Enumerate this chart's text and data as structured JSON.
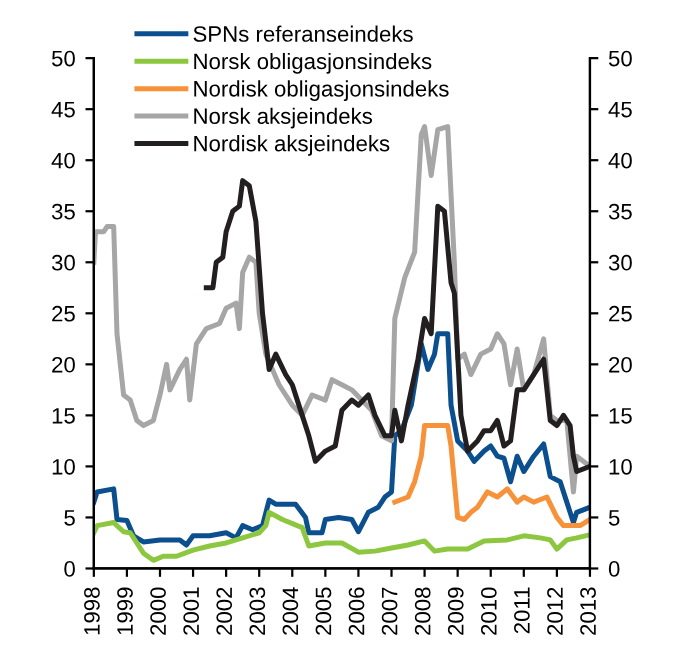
{
  "chart_data": {
    "type": "line",
    "xlim": [
      1998,
      2013
    ],
    "xticks": [
      1998,
      1999,
      2000,
      2001,
      2002,
      2003,
      2004,
      2005,
      2006,
      2007,
      2008,
      2009,
      2010,
      2011,
      2012,
      2013
    ],
    "ylim": [
      0,
      50
    ],
    "yticks": [
      0,
      5,
      10,
      15,
      20,
      25,
      30,
      35,
      40,
      45,
      50
    ],
    "y2lim": [
      0,
      50
    ],
    "y2ticks": [
      0,
      5,
      10,
      15,
      20,
      25,
      30,
      35,
      40,
      45,
      50
    ],
    "grid": false,
    "legend": "top left",
    "marker": "none",
    "line_style": "solid",
    "series": [
      {
        "name": "SPNs referanseindeks",
        "color": "#0c4f8f",
        "x": [
          1998.0,
          1998.1,
          1998.6,
          1998.7,
          1999.0,
          1999.2,
          1999.5,
          2000.0,
          2000.6,
          2000.8,
          2001.0,
          2001.5,
          2002.0,
          2002.3,
          2002.5,
          2002.8,
          2003.1,
          2003.3,
          2003.5,
          2004.1,
          2004.4,
          2004.5,
          2004.9,
          2005.0,
          2005.4,
          2005.8,
          2006.0,
          2006.3,
          2006.6,
          2006.8,
          2007.0,
          2007.1,
          2007.3,
          2007.6,
          2007.9,
          2008.1,
          2008.3,
          2008.4,
          2008.7,
          2008.8,
          2009.0,
          2009.3,
          2009.5,
          2009.8,
          2010.0,
          2010.2,
          2010.4,
          2010.6,
          2010.8,
          2011.0,
          2011.3,
          2011.6,
          2011.8,
          2012.1,
          2012.3,
          2012.5,
          2012.6,
          2013.0
        ],
        "values": [
          6.5,
          7.5,
          7.8,
          4.8,
          4.7,
          3.2,
          2.6,
          2.8,
          2.8,
          2.3,
          3.2,
          3.2,
          3.5,
          3.0,
          4.2,
          3.8,
          4.2,
          6.7,
          6.3,
          6.3,
          5.0,
          3.5,
          3.5,
          4.8,
          5.0,
          4.8,
          3.6,
          5.5,
          6.0,
          7.0,
          7.5,
          13,
          13.5,
          16,
          22,
          19.5,
          21,
          23,
          23,
          16,
          12.5,
          11.5,
          10.5,
          11.5,
          12,
          11,
          10.8,
          8.5,
          11,
          9.5,
          11,
          12.2,
          9,
          8.5,
          6.5,
          4.5,
          5.5,
          6
        ]
      },
      {
        "name": "Norsk obligasjonsindeks",
        "color": "#8dc63f",
        "x": [
          1998.0,
          1998.1,
          1998.6,
          1998.9,
          1999.1,
          1999.5,
          1999.8,
          2000.1,
          2000.5,
          2001.0,
          2001.5,
          2002.0,
          2002.5,
          2003.0,
          2003.2,
          2003.3,
          2003.7,
          2004.3,
          2004.5,
          2005.0,
          2005.5,
          2006.0,
          2006.5,
          2007.0,
          2007.5,
          2008.0,
          2008.3,
          2008.7,
          2009.3,
          2009.8,
          2010.5,
          2011.0,
          2011.5,
          2011.8,
          2012.0,
          2012.3,
          2012.6,
          2013.0
        ],
        "values": [
          3.5,
          4.2,
          4.5,
          3.6,
          3.5,
          1.5,
          0.8,
          1.2,
          1.2,
          1.8,
          2.2,
          2.5,
          3.0,
          3.5,
          4.2,
          5.5,
          4.8,
          4.0,
          2.2,
          2.5,
          2.5,
          1.6,
          1.7,
          2.0,
          2.3,
          2.7,
          1.7,
          1.9,
          1.9,
          2.7,
          2.8,
          3.2,
          3.0,
          2.8,
          1.9,
          2.8,
          3.0,
          3.3
        ]
      },
      {
        "name": "Nordisk obligasjonsindeks",
        "color": "#f7923a",
        "x": [
          2007.1,
          2007.5,
          2007.7,
          2007.9,
          2008.0,
          2008.7,
          2008.8,
          2009.0,
          2009.2,
          2009.4,
          2009.6,
          2009.9,
          2010.2,
          2010.5,
          2010.8,
          2011.0,
          2011.3,
          2011.7,
          2012.0,
          2012.2,
          2012.7,
          2013.0
        ],
        "values": [
          6.5,
          7,
          8.5,
          11,
          14,
          14,
          12,
          5,
          4.8,
          5.5,
          6,
          7.5,
          7,
          7.8,
          6.5,
          7,
          6.5,
          7,
          5,
          4.2,
          4.2,
          4.8
        ]
      },
      {
        "name": "Norsk aksjeindeks",
        "color": "#a6a6a6",
        "x": [
          1998.0,
          1998.05,
          1998.3,
          1998.4,
          1998.6,
          1998.7,
          1998.9,
          1999.1,
          1999.3,
          1999.5,
          1999.8,
          2000.0,
          2000.2,
          2000.3,
          2000.6,
          2000.8,
          2000.9,
          2001.1,
          2001.4,
          2001.8,
          2002.0,
          2002.3,
          2002.4,
          2002.5,
          2002.7,
          2002.9,
          2003.0,
          2003.2,
          2003.6,
          2004.0,
          2004.3,
          2004.6,
          2005.0,
          2005.2,
          2005.5,
          2005.8,
          2006.1,
          2006.4,
          2006.7,
          2007.0,
          2007.1,
          2007.4,
          2007.7,
          2007.9,
          2008.0,
          2008.2,
          2008.4,
          2008.7,
          2008.9,
          2009.0,
          2009.2,
          2009.4,
          2009.7,
          2010.0,
          2010.2,
          2010.4,
          2010.6,
          2010.8,
          2011.0,
          2011.3,
          2011.6,
          2011.8,
          2012.0,
          2012.3,
          2012.5,
          2012.6,
          2013.0
        ],
        "values": [
          30,
          33,
          33,
          33.5,
          33.5,
          23,
          17,
          16.5,
          14.5,
          14,
          14.5,
          17,
          20,
          17.5,
          19.5,
          20.5,
          16.5,
          22,
          23.5,
          24,
          25.5,
          26,
          23.5,
          29,
          30.5,
          30,
          25,
          21,
          18,
          16,
          15,
          17,
          16.5,
          18.5,
          18,
          17.5,
          16.5,
          15.5,
          13,
          12.5,
          24.5,
          28.5,
          31,
          42.5,
          43.3,
          38.5,
          43,
          43.3,
          30,
          20.5,
          21,
          19,
          21,
          21.5,
          23,
          22,
          18,
          21.5,
          17.5,
          19,
          22.5,
          15,
          14.5,
          14.5,
          7.5,
          11,
          10
        ]
      },
      {
        "name": "Nordisk aksjeindeks",
        "color": "#231f20",
        "x": [
          2001.4,
          2001.6,
          2001.7,
          2001.9,
          2002.0,
          2002.2,
          2002.4,
          2002.5,
          2002.7,
          2002.9,
          2003.1,
          2003.3,
          2003.5,
          2003.8,
          2004.0,
          2004.3,
          2004.5,
          2004.7,
          2005.0,
          2005.3,
          2005.5,
          2005.8,
          2006.0,
          2006.3,
          2006.5,
          2006.8,
          2007.0,
          2007.1,
          2007.3,
          2007.5,
          2007.8,
          2008.0,
          2008.2,
          2008.4,
          2008.6,
          2008.8,
          2008.9,
          2009.1,
          2009.3,
          2009.6,
          2009.8,
          2010.0,
          2010.2,
          2010.4,
          2010.6,
          2010.8,
          2011.0,
          2011.3,
          2011.6,
          2011.8,
          2012.0,
          2012.2,
          2012.4,
          2012.5,
          2012.6,
          2013.0
        ],
        "values": [
          27.5,
          27.5,
          30,
          30.5,
          33,
          35,
          35.5,
          38,
          37.5,
          34,
          25,
          19.5,
          21,
          19,
          18,
          15,
          13,
          10.5,
          11.5,
          12,
          15.5,
          16.5,
          16,
          17,
          15,
          13,
          13,
          15.5,
          12.5,
          16,
          20.5,
          24.5,
          23,
          35.5,
          35,
          28,
          27,
          15,
          11.5,
          12.5,
          13.5,
          13.5,
          14.5,
          12,
          12.5,
          17.5,
          17.5,
          19,
          20.5,
          14.5,
          14,
          15,
          14,
          11,
          9.5,
          10
        ]
      }
    ]
  }
}
